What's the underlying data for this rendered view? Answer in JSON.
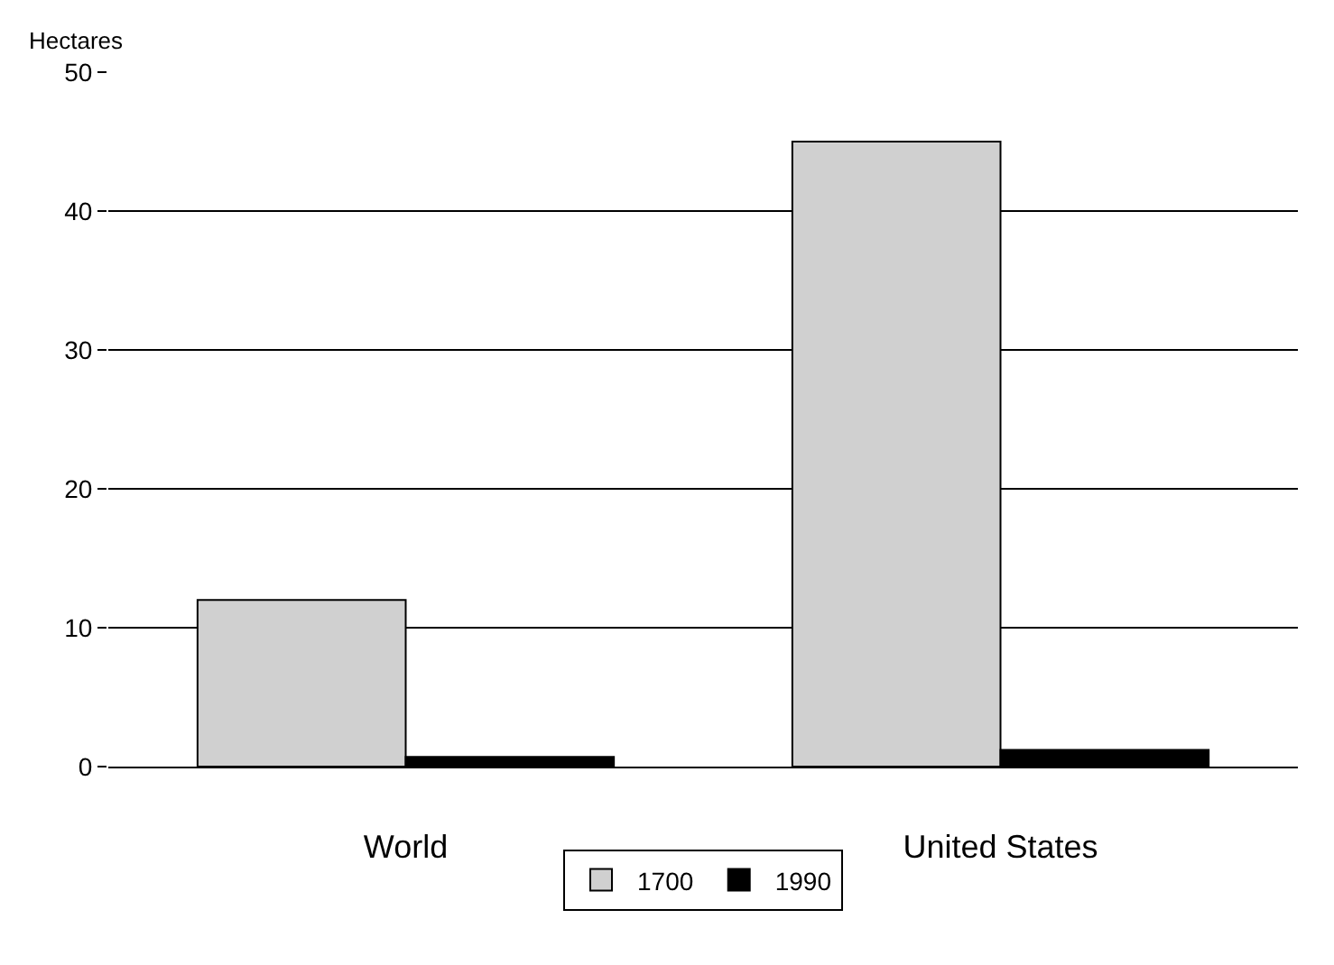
{
  "chart_data": {
    "type": "bar",
    "ylabel": "Hectares",
    "categories": [
      "World",
      "United States"
    ],
    "series": [
      {
        "name": "1700",
        "color": "#d0d0d0",
        "values": [
          12,
          45
        ]
      },
      {
        "name": "1990",
        "color": "#000000",
        "values": [
          0.7,
          1.2
        ]
      }
    ],
    "ylim": [
      0,
      50
    ],
    "yticks": [
      0,
      10,
      20,
      30,
      40,
      50
    ],
    "grid": "y",
    "legend": "bottom"
  }
}
